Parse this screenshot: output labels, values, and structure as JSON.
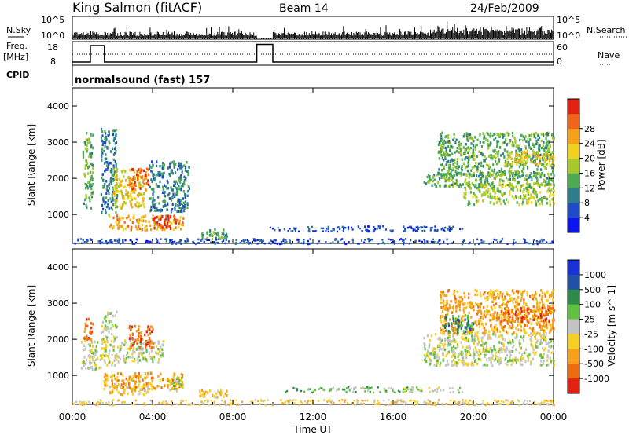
{
  "header": {
    "station": "King Salmon (fitACF)",
    "beam": "Beam 14",
    "date": "24/Feb/2009"
  },
  "strip_labels": {
    "nsky": "N.Sky",
    "nsearch": "N.Search",
    "freq_line1": "Freq.",
    "freq_line2": "[MHz]",
    "nave": "Nave",
    "cpid": "CPID",
    "cpid_value": "normalsound (fast) 157",
    "nsky_ticks": [
      "10^5",
      "10^0"
    ],
    "nsearch_ticks": [
      "10^5",
      "10^0"
    ],
    "freq_ticks": [
      "18",
      "8"
    ],
    "nave_ticks": [
      "60",
      "0"
    ]
  },
  "chart_data": [
    {
      "type": "heatmap",
      "name": "power",
      "ylabel": "Slant Range [km]",
      "xlabel": "Time UT",
      "xlim_hours": [
        0,
        24
      ],
      "ylim": [
        200,
        4500
      ],
      "yticks": [
        1000,
        2000,
        3000,
        4000
      ],
      "colorbar": {
        "label": "Power [dB]",
        "ticks": [
          "4",
          "8",
          "12",
          "16",
          "20",
          "24",
          "28"
        ],
        "colors": [
          "#0a14f0",
          "#1e4cc8",
          "#2e7e8a",
          "#4caa50",
          "#a6c828",
          "#f0d21e",
          "#f5a018",
          "#f26418",
          "#e62010"
        ]
      },
      "regions": [
        {
          "t": [
            0.5,
            1.0
          ],
          "r": [
            1200,
            3300
          ],
          "level": 3
        },
        {
          "t": [
            1.4,
            2.2
          ],
          "r": [
            1000,
            3400
          ],
          "level": 2
        },
        {
          "t": [
            2.0,
            3.6
          ],
          "r": [
            1200,
            2300
          ],
          "level": 5
        },
        {
          "t": [
            2.8,
            3.8
          ],
          "r": [
            1700,
            2300
          ],
          "level": 7
        },
        {
          "t": [
            1.8,
            5.5
          ],
          "r": [
            600,
            1000
          ],
          "level": 6
        },
        {
          "t": [
            4.0,
            5.2
          ],
          "r": [
            650,
            1000
          ],
          "level": 8
        },
        {
          "t": [
            3.8,
            5.8
          ],
          "r": [
            1100,
            2500
          ],
          "level": 2
        },
        {
          "t": [
            6.3,
            7.7
          ],
          "r": [
            350,
            650
          ],
          "level": 3
        },
        {
          "t": [
            9.8,
            17.5
          ],
          "r": [
            550,
            700
          ],
          "level": 1
        },
        {
          "t": [
            16.5,
            19.5
          ],
          "r": [
            550,
            700
          ],
          "level": 1
        },
        {
          "t": [
            17.5,
            24.0
          ],
          "r": [
            1800,
            2200
          ],
          "level": 3
        },
        {
          "t": [
            19.5,
            24.0
          ],
          "r": [
            1300,
            1900
          ],
          "level": 4
        },
        {
          "t": [
            18.2,
            24.0
          ],
          "r": [
            2100,
            3300
          ],
          "level": 3
        },
        {
          "t": [
            21.5,
            24.0
          ],
          "r": [
            2400,
            2800
          ],
          "level": 5
        },
        {
          "t": [
            0.0,
            24.0
          ],
          "r": [
            200,
            350
          ],
          "level": 1
        }
      ]
    },
    {
      "type": "heatmap",
      "name": "velocity",
      "ylabel": "Slant Range [km]",
      "xlabel": "Time UT",
      "xlim_hours": [
        0,
        24
      ],
      "ylim": [
        200,
        4500
      ],
      "yticks": [
        1000,
        2000,
        3000,
        4000
      ],
      "colorbar": {
        "label": "Velocity [m s^-1]",
        "ticks": [
          "1000",
          "500",
          "100",
          "25",
          "-25",
          "-100",
          "-500",
          "-1000"
        ],
        "colors": [
          "#1a30d8",
          "#2050a8",
          "#2e8a48",
          "#60c040",
          "#c4c4c0",
          "#f5d020",
          "#f5a018",
          "#f06a10",
          "#e62010"
        ]
      },
      "regions": [
        {
          "t": [
            0.5,
            1.0
          ],
          "r": [
            2000,
            2600
          ],
          "level": 7
        },
        {
          "t": [
            0.4,
            1.4
          ],
          "r": [
            1200,
            2000
          ],
          "level": 4
        },
        {
          "t": [
            1.4,
            2.2
          ],
          "r": [
            1300,
            2800
          ],
          "level": 4
        },
        {
          "t": [
            2.2,
            4.5
          ],
          "r": [
            1400,
            2000
          ],
          "level": 4
        },
        {
          "t": [
            2.8,
            4.0
          ],
          "r": [
            1800,
            2400
          ],
          "level": 7
        },
        {
          "t": [
            1.5,
            5.5
          ],
          "r": [
            650,
            1100
          ],
          "level": 6
        },
        {
          "t": [
            1.8,
            4.0
          ],
          "r": [
            500,
            800
          ],
          "level": 5
        },
        {
          "t": [
            4.8,
            5.5
          ],
          "r": [
            600,
            1000
          ],
          "level": 4
        },
        {
          "t": [
            6.3,
            7.7
          ],
          "r": [
            400,
            650
          ],
          "level": 5
        },
        {
          "t": [
            10.5,
            17.5
          ],
          "r": [
            550,
            700
          ],
          "level": 3
        },
        {
          "t": [
            16.5,
            19.5
          ],
          "r": [
            550,
            700
          ],
          "level": 4
        },
        {
          "t": [
            17.5,
            24.0
          ],
          "r": [
            1300,
            2200
          ],
          "level": 4
        },
        {
          "t": [
            18.3,
            24.0
          ],
          "r": [
            2200,
            3400
          ],
          "level": 6
        },
        {
          "t": [
            18.5,
            20.0
          ],
          "r": [
            2200,
            2700
          ],
          "level": 2
        },
        {
          "t": [
            21.5,
            24.0
          ],
          "r": [
            2500,
            2900
          ],
          "level": 7
        },
        {
          "t": [
            0.0,
            24.0
          ],
          "r": [
            200,
            350
          ],
          "level": 5
        }
      ]
    }
  ],
  "time_axis": {
    "ticks": [
      "00:00",
      "04:00",
      "08:00",
      "12:00",
      "16:00",
      "20:00",
      "00:00"
    ],
    "label": "Time UT"
  }
}
